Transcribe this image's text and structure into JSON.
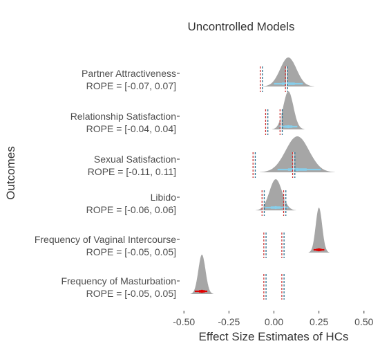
{
  "chart_data": {
    "type": "ridgeline",
    "title": "Uncontrolled Models",
    "xlabel": "Effect Size Estimates of HCs",
    "ylabel": "Outcomes",
    "xlim": [
      -0.52,
      0.52
    ],
    "x_ticks": [
      "-0.50",
      "-0.25",
      "0.00",
      "0.25",
      "0.50"
    ],
    "x_tick_values": [
      -0.5,
      -0.25,
      0.0,
      0.25,
      0.5
    ],
    "grid": false,
    "colors": {
      "density": "#a6a6a6",
      "interval_in_rope": "#87ceeb",
      "interval_outside_rope": "#e00000",
      "rope_line_a": "#cc3333",
      "rope_line_b": "#ffffff",
      "rope_line_c": "#2a6f8f"
    },
    "rows": [
      {
        "label": "Partner Attractiveness",
        "rope_label": "ROPE = [-0.07, 0.07]",
        "rope": [
          -0.07,
          0.07
        ],
        "mean": 0.08,
        "sd": 0.045,
        "hdi": [
          0.0,
          0.16
        ],
        "in_rope": true
      },
      {
        "label": "Relationship Satisfaction",
        "rope_label": "ROPE = [-0.04, 0.04]",
        "rope": [
          -0.04,
          0.04
        ],
        "mean": 0.08,
        "sd": 0.028,
        "hdi": [
          0.03,
          0.13
        ],
        "in_rope": true
      },
      {
        "label": "Sexual Satisfaction",
        "rope_label": "ROPE = [-0.11, 0.11]",
        "rope": [
          -0.11,
          0.11
        ],
        "mean": 0.13,
        "sd": 0.065,
        "hdi": [
          0.02,
          0.26
        ],
        "in_rope": true
      },
      {
        "label": "Libido",
        "rope_label": "ROPE = [-0.06, 0.06]",
        "rope": [
          -0.06,
          0.06
        ],
        "mean": 0.01,
        "sd": 0.035,
        "hdi": [
          -0.05,
          0.08
        ],
        "in_rope": true
      },
      {
        "label": "Frequency of Vaginal Intercourse",
        "rope_label": "ROPE = [-0.05, 0.05]",
        "rope": [
          -0.05,
          0.05
        ],
        "mean": 0.25,
        "sd": 0.018,
        "hdi": [
          0.22,
          0.28
        ],
        "in_rope": false
      },
      {
        "label": "Frequency of Masturbation",
        "rope_label": "ROPE = [-0.05, 0.05]",
        "rope": [
          -0.05,
          0.05
        ],
        "mean": -0.4,
        "sd": 0.02,
        "hdi": [
          -0.44,
          -0.37
        ],
        "in_rope": false
      }
    ]
  }
}
